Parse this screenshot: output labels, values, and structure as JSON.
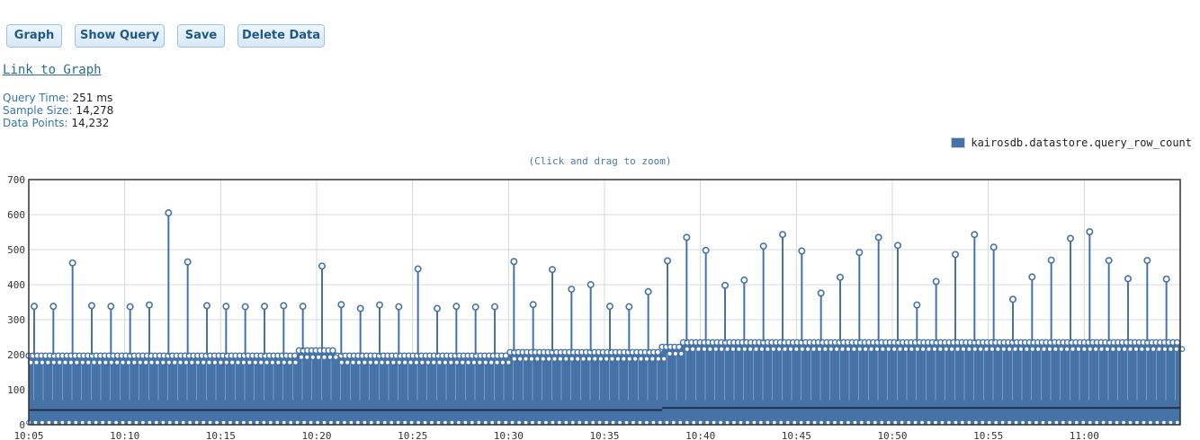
{
  "toolbar": {
    "graph_label": "Graph",
    "show_query_label": "Show Query",
    "save_label": "Save",
    "delete_data_label": "Delete Data"
  },
  "link_label": "Link to Graph",
  "stats": {
    "query_time_label": "Query Time:",
    "query_time_value": "251 ms",
    "sample_size_label": "Sample Size:",
    "sample_size_value": "14,278",
    "data_points_label": "Data Points:",
    "data_points_value": "14,232"
  },
  "legend": {
    "series_name": "kairosdb.datastore.query_row_count",
    "color": "#4572a7"
  },
  "zoom_hint": "(Click and drag to zoom)",
  "chart_data": {
    "type": "line",
    "x_unit": "time",
    "xlim": [
      "10:05",
      "11:05"
    ],
    "ylim": [
      0,
      700
    ],
    "grid": true,
    "legend_position": "top-right",
    "y_ticks": [
      0,
      100,
      200,
      300,
      400,
      500,
      600,
      700
    ],
    "x_ticks": [
      "10:05",
      "10:10",
      "10:15",
      "10:20",
      "10:25",
      "10:30",
      "10:35",
      "10:40",
      "10:45",
      "10:50",
      "10:55",
      "11:00"
    ],
    "series": [
      {
        "name": "kairosdb.datastore.query_row_count",
        "color": "#4572a7",
        "baseline_levels": [
          {
            "from": "10:05",
            "to": "10:19",
            "value": 200
          },
          {
            "from": "10:19",
            "to": "10:21",
            "value": 215
          },
          {
            "from": "10:21",
            "to": "10:30",
            "value": 200
          },
          {
            "from": "10:30",
            "to": "10:38",
            "value": 210
          },
          {
            "from": "10:38",
            "to": "10:39",
            "value": 225
          },
          {
            "from": "10:39",
            "to": "11:05",
            "value": 238
          }
        ],
        "spikes": [
          {
            "t": "10:05",
            "y": 338
          },
          {
            "t": "10:06",
            "y": 338
          },
          {
            "t": "10:07",
            "y": 462
          },
          {
            "t": "10:08",
            "y": 340
          },
          {
            "t": "10:09",
            "y": 338
          },
          {
            "t": "10:10",
            "y": 337
          },
          {
            "t": "10:11",
            "y": 342
          },
          {
            "t": "10:12",
            "y": 605
          },
          {
            "t": "10:13",
            "y": 465
          },
          {
            "t": "10:14",
            "y": 340
          },
          {
            "t": "10:15",
            "y": 338
          },
          {
            "t": "10:16",
            "y": 337
          },
          {
            "t": "10:17",
            "y": 338
          },
          {
            "t": "10:18",
            "y": 340
          },
          {
            "t": "10:19",
            "y": 338
          },
          {
            "t": "10:20",
            "y": 453
          },
          {
            "t": "10:21",
            "y": 343
          },
          {
            "t": "10:22",
            "y": 332
          },
          {
            "t": "10:23",
            "y": 342
          },
          {
            "t": "10:24",
            "y": 337
          },
          {
            "t": "10:25",
            "y": 445
          },
          {
            "t": "10:26",
            "y": 332
          },
          {
            "t": "10:27",
            "y": 338
          },
          {
            "t": "10:28",
            "y": 336
          },
          {
            "t": "10:29",
            "y": 337
          },
          {
            "t": "10:30",
            "y": 466
          },
          {
            "t": "10:31",
            "y": 343
          },
          {
            "t": "10:32",
            "y": 443
          },
          {
            "t": "10:33",
            "y": 387
          },
          {
            "t": "10:34",
            "y": 400
          },
          {
            "t": "10:35",
            "y": 338
          },
          {
            "t": "10:36",
            "y": 337
          },
          {
            "t": "10:37",
            "y": 380
          },
          {
            "t": "10:38",
            "y": 468
          },
          {
            "t": "10:39",
            "y": 535
          },
          {
            "t": "10:40",
            "y": 498
          },
          {
            "t": "10:41",
            "y": 398
          },
          {
            "t": "10:42",
            "y": 413
          },
          {
            "t": "10:43",
            "y": 510
          },
          {
            "t": "10:44",
            "y": 543
          },
          {
            "t": "10:45",
            "y": 496
          },
          {
            "t": "10:46",
            "y": 376
          },
          {
            "t": "10:47",
            "y": 421
          },
          {
            "t": "10:48",
            "y": 492
          },
          {
            "t": "10:49",
            "y": 535
          },
          {
            "t": "10:50",
            "y": 512
          },
          {
            "t": "10:51",
            "y": 342
          },
          {
            "t": "10:52",
            "y": 409
          },
          {
            "t": "10:53",
            "y": 486
          },
          {
            "t": "10:54",
            "y": 543
          },
          {
            "t": "10:55",
            "y": 507
          },
          {
            "t": "10:56",
            "y": 358
          },
          {
            "t": "10:57",
            "y": 422
          },
          {
            "t": "10:58",
            "y": 470
          },
          {
            "t": "10:59",
            "y": 532
          },
          {
            "t": "11:00",
            "y": 551
          },
          {
            "t": "11:01",
            "y": 469
          },
          {
            "t": "11:02",
            "y": 417
          },
          {
            "t": "11:03",
            "y": 469
          },
          {
            "t": "11:04",
            "y": 416
          }
        ]
      }
    ]
  }
}
